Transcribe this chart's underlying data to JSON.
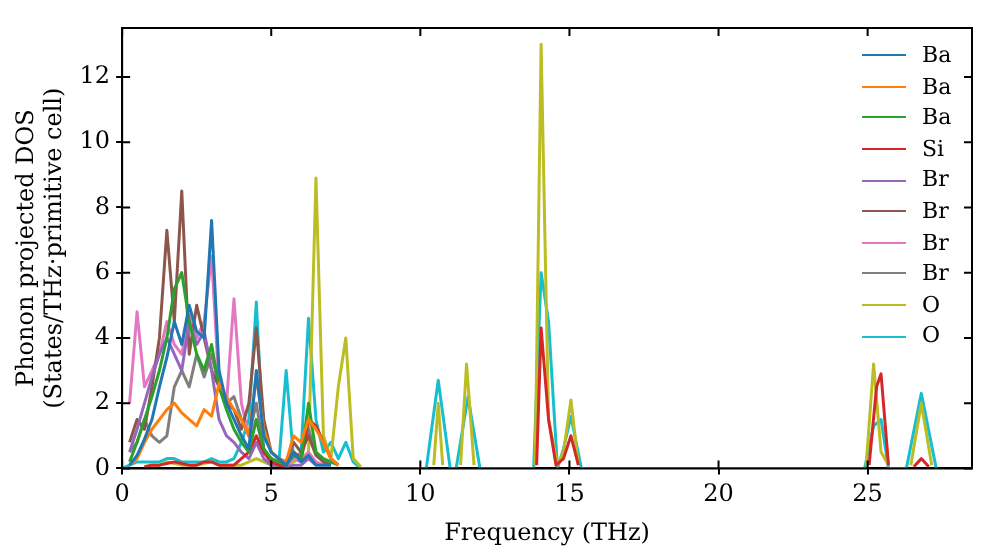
{
  "chart_data": {
    "type": "line",
    "xlabel": "Frequency (THz)",
    "ylabel": "Phonon projected DOS\n(States/THz·primitive cell)",
    "xlim": [
      0,
      28.5
    ],
    "ylim": [
      0,
      13.5
    ],
    "xticks": [
      0,
      5,
      10,
      15,
      20,
      25
    ],
    "yticks": [
      0,
      2,
      4,
      6,
      8,
      10,
      12
    ],
    "grid": false,
    "legend": "top right",
    "marker": "none",
    "line_style": "solid",
    "series": [
      {
        "name": "Ba",
        "color": "#1f77b4",
        "x": [
          0.25,
          0.5,
          0.75,
          1,
          1.25,
          1.5,
          1.75,
          2,
          2.25,
          2.5,
          2.75,
          3,
          3.25,
          3.5,
          3.75,
          4,
          4.25,
          4.5,
          4.75,
          5,
          5.25,
          5.5,
          5.75,
          6,
          6.25,
          6.5,
          6.75,
          7
        ],
        "values": [
          0.1,
          0.4,
          0.9,
          1.5,
          2.5,
          3.4,
          4.5,
          3.8,
          5.0,
          4.2,
          4.0,
          7.6,
          3.0,
          2.0,
          1.5,
          1.0,
          0.6,
          3.0,
          1.0,
          0.5,
          0.3,
          0.1,
          0.5,
          0.2,
          0.4,
          0.1,
          0.1,
          0.1
        ]
      },
      {
        "name": "Ba",
        "color": "#ff7f0e",
        "x": [
          0.25,
          0.5,
          0.75,
          1,
          1.25,
          1.5,
          1.75,
          2,
          2.25,
          2.5,
          2.75,
          3,
          3.25,
          3.5,
          3.75,
          4,
          4.25,
          4.5,
          4.75,
          5,
          5.25,
          5.5,
          5.75,
          6,
          6.25,
          6.5,
          6.75,
          7,
          7.25
        ],
        "values": [
          0.1,
          0.3,
          0.8,
          1.2,
          1.5,
          1.8,
          2.0,
          1.7,
          1.5,
          1.3,
          1.8,
          1.6,
          2.6,
          2.2,
          1.8,
          1.5,
          1.0,
          2.8,
          1.2,
          0.5,
          0.3,
          0.2,
          1.0,
          0.8,
          1.5,
          1.2,
          0.8,
          0.3,
          0.1
        ]
      },
      {
        "name": "Ba",
        "color": "#2ca02c",
        "x": [
          0.25,
          0.5,
          0.75,
          1,
          1.25,
          1.5,
          1.75,
          2,
          2.25,
          2.5,
          2.75,
          3,
          3.25,
          3.5,
          3.75,
          4,
          4.25,
          4.5,
          4.75,
          5,
          5.25,
          5.5,
          5.75,
          6,
          6.25,
          6.5,
          6.75,
          7,
          7.25
        ],
        "values": [
          0.2,
          0.8,
          1.5,
          2.2,
          3.0,
          4.0,
          5.5,
          6.0,
          4.5,
          3.5,
          3.0,
          3.8,
          2.5,
          1.8,
          1.2,
          0.8,
          0.5,
          1.5,
          0.6,
          0.3,
          0.2,
          0.1,
          0.4,
          0.3,
          2.0,
          0.5,
          0.3,
          0.2,
          0.1
        ]
      },
      {
        "name": "Si",
        "color": "#d62728",
        "x": [
          0.75,
          1,
          1.25,
          1.5,
          1.75,
          2,
          2.25,
          2.5,
          2.75,
          3,
          3.25,
          3.5,
          3.75,
          4,
          4.25,
          4.5,
          4.75,
          5,
          5.25,
          5.5,
          5.75,
          6,
          6.25,
          6.5,
          6.75,
          7,
          7.25,
          8.5,
          13.9,
          14.05,
          14.3,
          14.55,
          14.8,
          15.05,
          15.3,
          20,
          25.05,
          25.3,
          25.45,
          25.7,
          26,
          26.55,
          26.8,
          27.05
        ],
        "values": [
          0.05,
          0.1,
          0.1,
          0.15,
          0.2,
          0.15,
          0.1,
          0.1,
          0.2,
          0.2,
          0.1,
          0.1,
          0.1,
          0.3,
          0.5,
          1.0,
          0.5,
          0.2,
          0.1,
          0.1,
          0.5,
          0.3,
          1.5,
          1.3,
          0.8,
          0.3,
          0.1,
          null,
          0.1,
          4.3,
          1.5,
          0.1,
          0.3,
          1.0,
          0.1,
          null,
          0.1,
          2.5,
          2.9,
          0.1,
          null,
          0.05,
          0.3,
          0.05
        ]
      },
      {
        "name": "Br",
        "color": "#9467bd",
        "x": [
          0.25,
          0.5,
          0.75,
          1,
          1.25,
          1.5,
          1.75,
          2,
          2.25,
          2.5,
          2.75,
          3,
          3.25,
          3.5,
          3.75,
          4,
          4.25,
          4.5,
          4.75,
          5,
          5.25,
          5.5,
          5.75,
          6,
          6.25,
          6.5
        ],
        "values": [
          0.5,
          1.2,
          2.0,
          2.8,
          3.5,
          4.0,
          3.5,
          3.0,
          4.5,
          3.8,
          4.2,
          3.0,
          1.5,
          1.0,
          0.8,
          0.5,
          0.3,
          0.8,
          0.3,
          0.1,
          0.1,
          0.05,
          0.1,
          0.1,
          0.3,
          0.1
        ]
      },
      {
        "name": "Br",
        "color": "#8c564b",
        "x": [
          0.25,
          0.5,
          0.75,
          1,
          1.25,
          1.5,
          1.75,
          2,
          2.25,
          2.5,
          2.75,
          3,
          3.25,
          3.5,
          3.75,
          4,
          4.25,
          4.5,
          4.75,
          5,
          5.25,
          5.5,
          5.75,
          6,
          6.25,
          6.5,
          6.75,
          7
        ],
        "values": [
          0.8,
          1.5,
          1.2,
          2.5,
          4.0,
          7.3,
          4.5,
          8.5,
          3.5,
          5.0,
          4.0,
          3.0,
          2.5,
          2.0,
          1.8,
          1.2,
          2.0,
          4.3,
          1.5,
          0.5,
          0.3,
          0.2,
          0.8,
          0.5,
          1.0,
          0.4,
          0.2,
          0.1
        ]
      },
      {
        "name": "Br",
        "color": "#e377c2",
        "x": [
          0.25,
          0.5,
          0.75,
          1,
          1.25,
          1.5,
          1.75,
          2,
          2.25,
          2.5,
          2.75,
          3,
          3.25,
          3.5,
          3.75,
          4,
          4.25,
          4.5,
          4.75,
          5,
          5.25,
          5.5,
          5.75,
          6,
          6.25,
          6.5,
          6.75
        ],
        "values": [
          2.0,
          4.8,
          2.5,
          3.0,
          3.5,
          4.5,
          3.8,
          3.5,
          4.7,
          4.0,
          4.5,
          6.5,
          2.5,
          2.0,
          5.2,
          2.0,
          1.0,
          1.5,
          0.5,
          0.2,
          0.1,
          0.1,
          0.3,
          0.2,
          0.5,
          0.2,
          0.1
        ]
      },
      {
        "name": "Br",
        "color": "#7f7f7f",
        "x": [
          0.25,
          0.5,
          0.75,
          1,
          1.25,
          1.5,
          1.75,
          2,
          2.25,
          2.5,
          2.75,
          3,
          3.25,
          3.5,
          3.75,
          4,
          4.25,
          4.5,
          4.75,
          5,
          5.25,
          5.5,
          5.75,
          6,
          6.25,
          6.5,
          6.75,
          7
        ],
        "values": [
          0.5,
          0.8,
          1.5,
          1.0,
          0.8,
          1.0,
          2.5,
          3.0,
          2.5,
          3.5,
          2.8,
          3.5,
          2.5,
          2.0,
          2.2,
          1.5,
          1.0,
          2.0,
          0.6,
          0.3,
          0.2,
          0.1,
          0.5,
          0.3,
          1.2,
          0.5,
          0.2,
          0.1
        ]
      },
      {
        "name": "O",
        "color": "#bcbd22",
        "x": [
          0.75,
          1,
          1.25,
          1.5,
          1.75,
          2,
          2.25,
          2.5,
          2.75,
          3,
          3.25,
          3.5,
          3.75,
          4,
          4.25,
          4.5,
          4.75,
          5,
          5.25,
          5.5,
          5.75,
          6,
          6.25,
          6.5,
          6.75,
          7,
          7.25,
          7.5,
          7.75,
          8,
          9,
          10.45,
          10.6,
          10.75,
          11,
          11.35,
          11.55,
          11.8,
          13,
          13.85,
          14.05,
          14.3,
          14.6,
          14.8,
          15.05,
          15.3,
          20,
          24.95,
          25.2,
          25.45,
          25.7,
          26,
          26.45,
          26.8,
          27.15
        ],
        "values": [
          0.05,
          0.1,
          0.1,
          0.2,
          0.15,
          0.1,
          0.1,
          0.1,
          0.15,
          0.2,
          0.1,
          0.1,
          0.1,
          0.1,
          0.2,
          0.3,
          0.2,
          0.1,
          0.1,
          0.1,
          0.2,
          0.3,
          0.5,
          8.9,
          1.0,
          0.3,
          2.5,
          4.0,
          0.3,
          0.05,
          null,
          0.1,
          2.0,
          0.1,
          null,
          0.1,
          3.2,
          0.1,
          null,
          0.1,
          13.0,
          1.5,
          0.1,
          0.5,
          2.1,
          0.1,
          null,
          0.1,
          3.2,
          0.5,
          0.1,
          null,
          0.1,
          2.0,
          0.1
        ]
      },
      {
        "name": "O",
        "color": "#17becf",
        "x": [
          0,
          0.25,
          0.5,
          0.75,
          1,
          1.25,
          1.5,
          1.75,
          2,
          2.25,
          2.5,
          2.75,
          3,
          3.25,
          3.5,
          3.75,
          4,
          4.25,
          4.5,
          4.75,
          5,
          5.25,
          5.5,
          5.75,
          6,
          6.25,
          6.5,
          6.75,
          7,
          7.25,
          7.5,
          7.75,
          8,
          10.2,
          10.6,
          11.0,
          11.2,
          11.6,
          12.0,
          13.8,
          14.05,
          14.3,
          14.6,
          14.8,
          15.05,
          15.4,
          24.9,
          25.2,
          25.45,
          25.7,
          26.3,
          26.8,
          27.3
        ],
        "values": [
          0,
          0.1,
          0.2,
          0.2,
          0.2,
          0.2,
          0.3,
          0.3,
          0.2,
          0.2,
          0.2,
          0.2,
          0.3,
          0.2,
          0.2,
          0.3,
          0.8,
          1.5,
          5.1,
          0.5,
          0.2,
          0.1,
          3.0,
          0.3,
          0.5,
          4.6,
          1.5,
          0.5,
          0.8,
          0.3,
          0.8,
          0.2,
          0,
          0,
          2.7,
          0,
          0,
          2.2,
          0,
          0,
          6.0,
          4.5,
          0,
          0.6,
          1.6,
          0,
          0,
          1.3,
          1.5,
          0,
          0,
          2.3,
          0
        ]
      }
    ]
  }
}
